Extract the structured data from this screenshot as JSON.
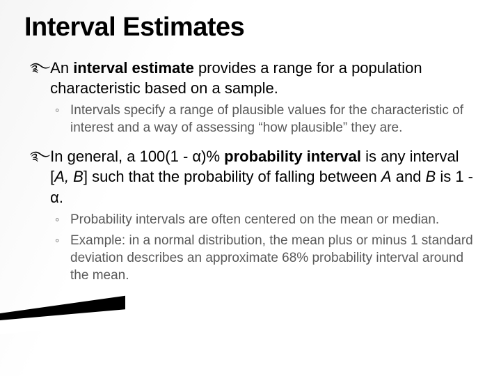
{
  "colors": {
    "background": "#ffffff",
    "title_color": "#000000",
    "body_color": "#000000",
    "sub_color": "#595959",
    "accent_black": "#000000"
  },
  "typography": {
    "title_fontsize": 38,
    "body_fontsize": 22,
    "sub_fontsize": 19,
    "font_family": "Arial"
  },
  "title": "Interval Estimates",
  "b1": {
    "pre": " An ",
    "bold": "interval estimate",
    "post": " provides a range for a population characteristic based on a sample."
  },
  "b1s1": "Intervals specify a range of plausible values for the characteristic of interest and a way of assessing “how plausible” they are.",
  "b2": {
    "p1": "In general, a 100(1 - ",
    "a1": "α",
    "p2": ")% ",
    "bold": "probability interval",
    "p3": " is any interval [",
    "iA": "A, B",
    "p4": "] such that the probability of falling between ",
    "iA2": "A",
    "p5": " and ",
    "iB": "B",
    "p6": " is 1 - ",
    "a2": "α",
    "p7": "."
  },
  "b2s1": "Probability intervals are often centered on the mean or median.",
  "b2s2": "Example: in a normal distribution, the mean plus or minus 1 standard deviation describes an approximate 68% probability interval around the mean.",
  "markers": {
    "main": "࿐",
    "sub": "◦"
  }
}
